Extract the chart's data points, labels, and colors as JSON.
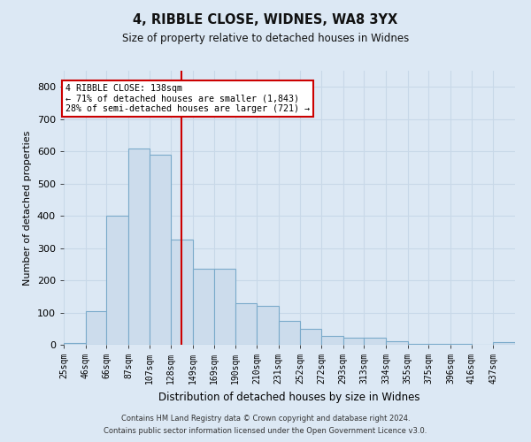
{
  "title": "4, RIBBLE CLOSE, WIDNES, WA8 3YX",
  "subtitle": "Size of property relative to detached houses in Widnes",
  "xlabel": "Distribution of detached houses by size in Widnes",
  "ylabel": "Number of detached properties",
  "footer_line1": "Contains HM Land Registry data © Crown copyright and database right 2024.",
  "footer_line2": "Contains public sector information licensed under the Open Government Licence v3.0.",
  "annotation_line1": "4 RIBBLE CLOSE: 138sqm",
  "annotation_line2": "← 71% of detached houses are smaller (1,843)",
  "annotation_line3": "28% of semi-detached houses are larger (721) →",
  "bar_color": "#ccdcec",
  "bar_edge_color": "#7aaaca",
  "grid_color": "#c8d8e8",
  "marker_line_color": "#cc0000",
  "background_color": "#dce8f4",
  "annotation_box_color": "#ffffff",
  "annotation_box_edge": "#cc0000",
  "marker_value": 138,
  "categories": [
    "25sqm",
    "46sqm",
    "66sqm",
    "87sqm",
    "107sqm",
    "128sqm",
    "149sqm",
    "169sqm",
    "190sqm",
    "210sqm",
    "231sqm",
    "252sqm",
    "272sqm",
    "293sqm",
    "313sqm",
    "334sqm",
    "355sqm",
    "375sqm",
    "396sqm",
    "416sqm",
    "437sqm"
  ],
  "bin_edges": [
    25,
    46,
    66,
    87,
    107,
    128,
    149,
    169,
    190,
    210,
    231,
    252,
    272,
    293,
    313,
    334,
    355,
    375,
    396,
    416,
    437,
    458
  ],
  "values": [
    5,
    105,
    400,
    610,
    590,
    325,
    235,
    235,
    130,
    120,
    75,
    50,
    28,
    22,
    22,
    10,
    3,
    3,
    3,
    0,
    8
  ],
  "ylim": [
    0,
    850
  ],
  "yticks": [
    0,
    100,
    200,
    300,
    400,
    500,
    600,
    700,
    800
  ]
}
